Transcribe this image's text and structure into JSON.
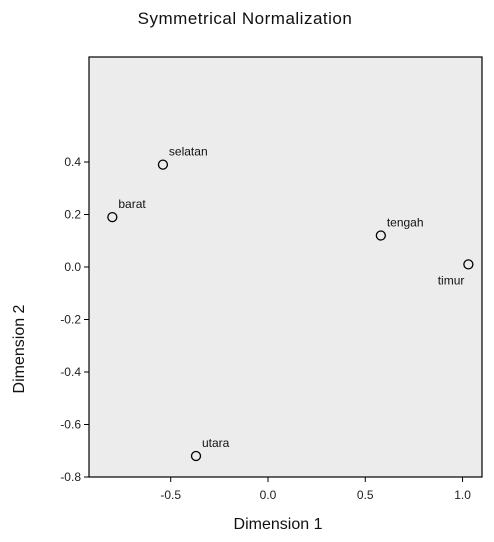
{
  "chart_data": {
    "type": "scatter",
    "title": "Symmetrical Normalization",
    "xlabel": "Dimension 1",
    "ylabel": "Dimension 2",
    "xlim": [
      -0.92,
      1.1
    ],
    "ylim": [
      -0.8,
      0.8
    ],
    "x_ticks": [
      {
        "value": -0.5,
        "label": "-0.5"
      },
      {
        "value": 0.0,
        "label": "0.0"
      },
      {
        "value": 0.5,
        "label": "0.5"
      },
      {
        "value": 1.0,
        "label": "1.0"
      }
    ],
    "y_ticks": [
      {
        "value": 0.4,
        "label": "0.4"
      },
      {
        "value": 0.2,
        "label": "0.2"
      },
      {
        "value": 0.0,
        "label": "0.0"
      },
      {
        "value": -0.2,
        "label": "-0.2"
      },
      {
        "value": -0.4,
        "label": "-0.4"
      },
      {
        "value": -0.6,
        "label": "-0.6"
      },
      {
        "value": -0.8,
        "label": "-0.8"
      }
    ],
    "points": [
      {
        "label": "selatan",
        "x": -0.54,
        "y": 0.39,
        "label_side": "upper-right"
      },
      {
        "label": "barat",
        "x": -0.8,
        "y": 0.19,
        "label_side": "upper-right"
      },
      {
        "label": "tengah",
        "x": 0.58,
        "y": 0.12,
        "label_side": "upper-right"
      },
      {
        "label": "timur",
        "x": 1.03,
        "y": 0.01,
        "label_side": "lower-left"
      },
      {
        "label": "utara",
        "x": -0.37,
        "y": -0.72,
        "label_side": "upper-right"
      }
    ],
    "grid": false,
    "legend": "none",
    "plot_background": "#ececec",
    "marker": "open-circle"
  }
}
